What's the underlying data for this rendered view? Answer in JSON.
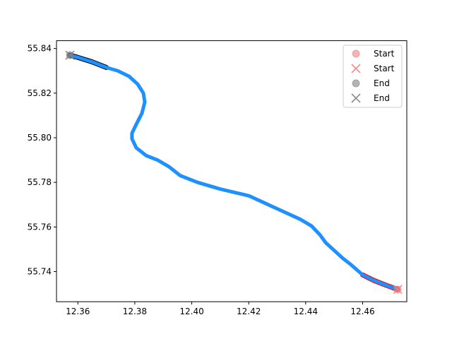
{
  "chart_data": {
    "type": "line",
    "title": "",
    "xlabel": "",
    "ylabel": "",
    "xlim": [
      12.3525,
      12.4755
    ],
    "ylim": [
      55.7265,
      55.8435
    ],
    "x_ticks": [
      12.36,
      12.38,
      12.4,
      12.42,
      12.44,
      12.46
    ],
    "x_tick_labels": [
      "12.36",
      "12.38",
      "12.40",
      "12.42",
      "12.44",
      "12.46"
    ],
    "y_ticks": [
      55.74,
      55.76,
      55.78,
      55.8,
      55.82,
      55.84
    ],
    "y_tick_labels": [
      "55.74",
      "55.76",
      "55.78",
      "55.80",
      "55.82",
      "55.84"
    ],
    "grid": false,
    "legend_position": "top-right",
    "legend": [
      {
        "label": "Start",
        "marker": "circle",
        "color": "#f08080"
      },
      {
        "label": "Start",
        "marker": "x",
        "color": "#f08080"
      },
      {
        "label": "End",
        "marker": "circle",
        "color": "#808080"
      },
      {
        "label": "End",
        "marker": "x",
        "color": "#808080"
      }
    ],
    "series": [
      {
        "color": "#1e90ff",
        "x": [
          12.3572,
          12.36,
          12.365,
          12.37,
          12.374,
          12.378,
          12.381,
          12.383,
          12.3835,
          12.3825,
          12.3805,
          12.379,
          12.379,
          12.3805,
          12.384,
          12.388,
          12.392,
          12.396,
          12.402,
          12.41,
          12.42,
          12.426,
          12.432,
          12.438,
          12.442,
          12.445,
          12.447,
          12.45,
          12.453,
          12.456,
          12.46,
          12.464,
          12.468,
          12.4723
        ],
        "y": [
          55.837,
          55.836,
          55.834,
          55.8315,
          55.83,
          55.8275,
          55.824,
          55.82,
          55.816,
          55.811,
          55.806,
          55.802,
          55.7995,
          55.7955,
          55.792,
          55.79,
          55.787,
          55.783,
          55.78,
          55.777,
          55.774,
          55.7705,
          55.767,
          55.7635,
          55.7605,
          55.7565,
          55.753,
          55.7495,
          55.746,
          55.743,
          55.7385,
          55.736,
          55.734,
          55.732
        ]
      },
      {
        "color": "#000000",
        "x": [
          12.3572,
          12.36,
          12.365,
          12.37
        ],
        "y": [
          55.837,
          55.836,
          55.834,
          55.8315
        ]
      },
      {
        "color": "#ff0000",
        "x": [
          12.46,
          12.464,
          12.468,
          12.4723
        ],
        "y": [
          55.7385,
          55.736,
          55.734,
          55.732
        ]
      }
    ],
    "markers": [
      {
        "label": "Start",
        "marker": "circle",
        "color": "#f08080",
        "x": 12.4723,
        "y": 55.732
      },
      {
        "label": "Start",
        "marker": "x",
        "color": "#f08080",
        "x": 12.4723,
        "y": 55.732
      },
      {
        "label": "End",
        "marker": "circle",
        "color": "#808080",
        "x": 12.3572,
        "y": 55.837
      },
      {
        "label": "End",
        "marker": "x",
        "color": "#808080",
        "x": 12.3572,
        "y": 55.837
      }
    ]
  }
}
